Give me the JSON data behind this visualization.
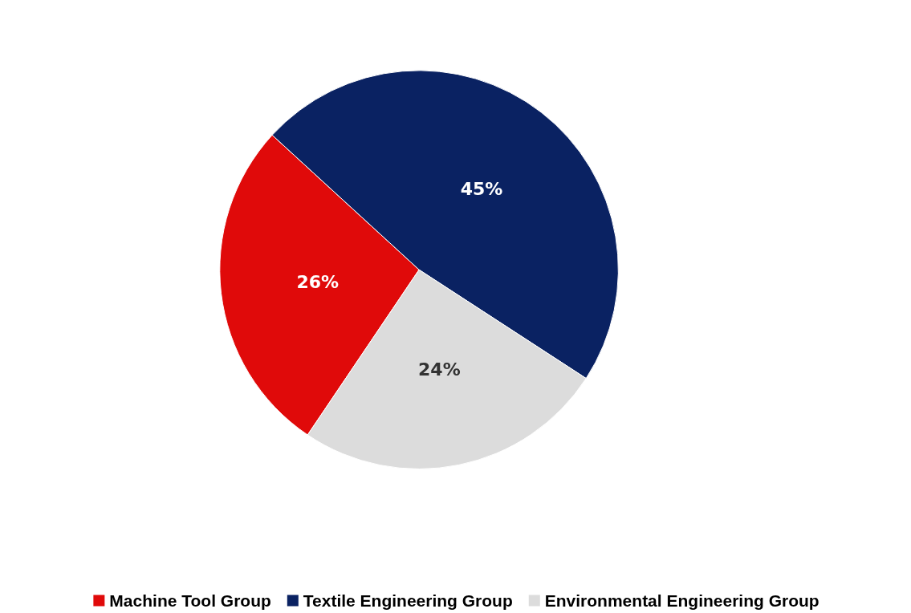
{
  "chart_data": {
    "type": "pie",
    "categories": [
      "Machine Tool Group",
      "Textile Engineering Group",
      "Environmental Engineering Group"
    ],
    "values": [
      26,
      45,
      24
    ],
    "colors": [
      "#e00a0a",
      "#0a2262",
      "#dcdcdc"
    ],
    "value_labels": [
      "26%",
      "45%",
      "24%"
    ],
    "legend": "bottom"
  }
}
